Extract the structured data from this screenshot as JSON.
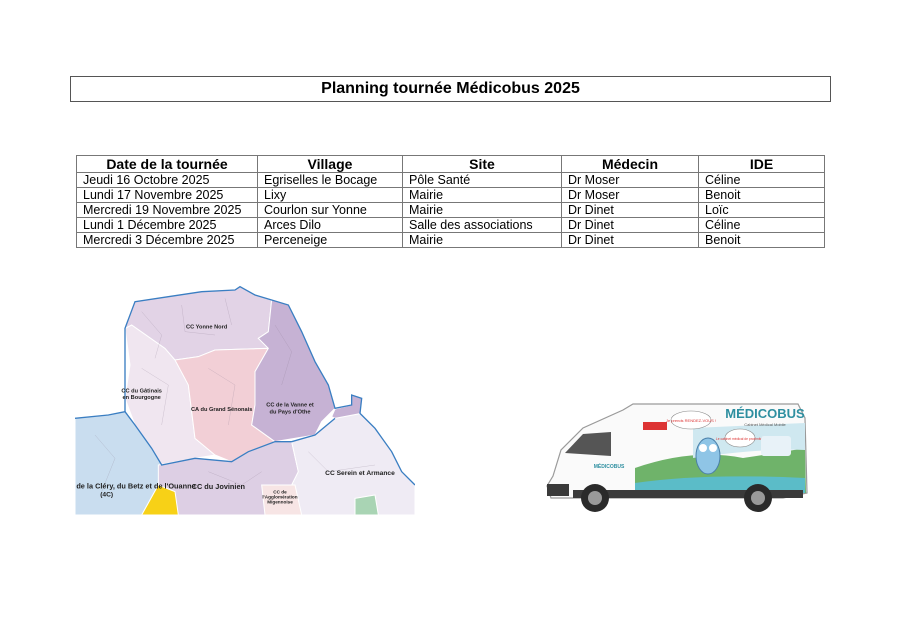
{
  "title": "Planning tournée Médicobus 2025",
  "table": {
    "headers": [
      "Date de la tournée",
      "Village",
      "Site",
      "Médecin",
      "IDE"
    ],
    "rows": [
      [
        "Jeudi 16 Octobre 2025",
        "Egriselles le Bocage",
        "Pôle Santé",
        "Dr Moser",
        "Céline"
      ],
      [
        "Lundi 17 Novembre 2025",
        "Lixy",
        "Mairie",
        "Dr Moser",
        "Benoit"
      ],
      [
        "Mercredi 19 Novembre 2025",
        "Courlon sur Yonne",
        "Mairie",
        "Dr Dinet",
        "Loïc"
      ],
      [
        "Lundi 1 Décembre 2025",
        "Arces Dilo",
        "Salle des associations",
        "Dr Dinet",
        "Céline"
      ],
      [
        "Mercredi 3 Décembre 2025",
        "Perceneige",
        "Mairie",
        "Dr Dinet",
        "Benoit"
      ]
    ]
  },
  "map": {
    "labels": {
      "yonne_nord": "CC Yonne Nord",
      "gatinais_1": "CC du Gâtinais",
      "gatinais_2": "en Bourgogne",
      "senonais": "CA du Grand Sénonais",
      "vanne_1": "CC de la Vanne et",
      "vanne_2": "du Pays d'Othe",
      "jovinien": "CC du Jovinien",
      "serein": "CC Serein et Armance",
      "migennoise_1": "CC de",
      "migennoise_2": "l'Agglomération",
      "migennoise_3": "Migennoise",
      "clery_1": "de la Cléry, du Betz et de l'Ouanne",
      "clery_2": "(4C)"
    },
    "colors": {
      "yonne_nord": "#e2d3e6",
      "gatinais": "#f0e6f0",
      "senonais": "#f2cfd6",
      "vanne": "#c6b2d4",
      "clery": "#c9ddef",
      "jovinien": "#ddcfe4",
      "serein": "#efebf4",
      "migennoise": "#f7e5e5",
      "yellow": "#f7d117",
      "green": "#a9d4b4",
      "border": "#3a7ec2"
    }
  },
  "van": {
    "brand": "MÉDICOBUS",
    "tagline": "Cabinet Médical Mobile",
    "bubble_1": "Je prends RENDEZ-VOUS !",
    "bubble_2": "Le cabinet médical de proximité !",
    "side_brand": "MÉDICOBUS"
  }
}
